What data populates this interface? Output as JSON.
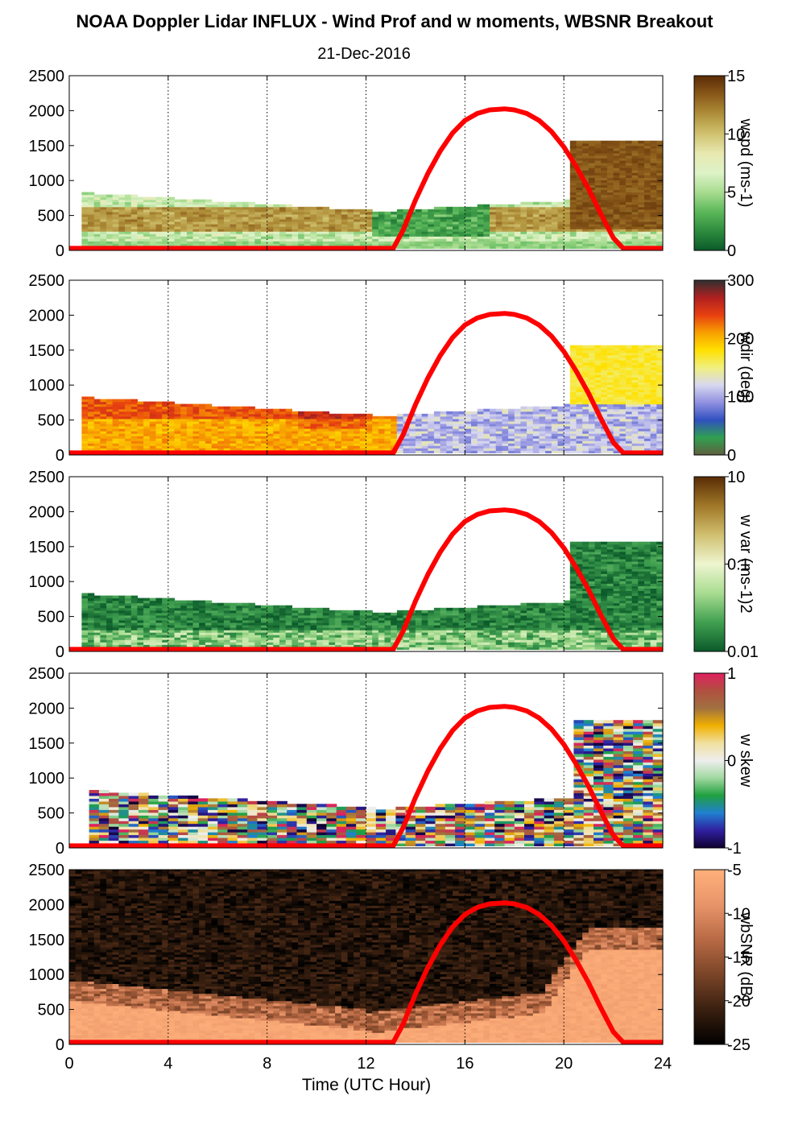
{
  "title": "NOAA Doppler Lidar INFLUX - Wind Prof and w moments, WBSNR Breakout",
  "subtitle": "21-Dec-2016",
  "chart_data": {
    "type": "heatmap",
    "xlabel": "Time (UTC Hour)",
    "xlim": [
      0,
      24
    ],
    "x_ticks": [
      "0",
      "4",
      "8",
      "12",
      "16",
      "20",
      "24"
    ],
    "x_gridlines": [
      4,
      8,
      12,
      16,
      20,
      24
    ],
    "ylim": [
      0,
      2500
    ],
    "y_ticks": [
      "0",
      "500",
      "1000",
      "1500",
      "2000",
      "2500"
    ],
    "overlay_curve": {
      "color": "#ff0000",
      "x": [
        0,
        13.1,
        13.5,
        14,
        14.5,
        15,
        15.5,
        16,
        16.5,
        17,
        17.6,
        18,
        18.5,
        19,
        19.5,
        20,
        20.5,
        21,
        21.5,
        22,
        22.4,
        24
      ],
      "y": [
        30,
        30,
        290,
        720,
        1100,
        1420,
        1680,
        1860,
        1960,
        2010,
        2025,
        2010,
        1960,
        1860,
        1700,
        1480,
        1200,
        880,
        520,
        180,
        30,
        30
      ]
    },
    "panels": [
      {
        "id": "wspd",
        "colorbar_label": "wspd (ms-1)",
        "colorbar_ticks": [
          "15",
          "10",
          "5",
          "0"
        ],
        "colorbar_colors": [
          "#5a2c05",
          "#8a5a1a",
          "#b0903a",
          "#d0c270",
          "#e8e8b0",
          "#ddf3c8",
          "#a8dc90",
          "#5cb85a",
          "#2e8b3e",
          "#0b5a2a"
        ]
      },
      {
        "id": "wdir",
        "colorbar_label": "wdir (deg)",
        "colorbar_ticks": [
          "300",
          "200",
          "100",
          "0"
        ],
        "colorbar_colors": [
          "#303030",
          "#b02020",
          "#e84010",
          "#f8a000",
          "#ffe000",
          "#f0f080",
          "#d8d8f0",
          "#9090e0",
          "#3050c0",
          "#30a050",
          "#606040"
        ]
      },
      {
        "id": "wvar",
        "colorbar_label": "w var (ms-1)2",
        "colorbar_ticks": [
          "10",
          "0.1",
          "0.01"
        ],
        "colorbar_colors": [
          "#5a2c05",
          "#a07828",
          "#d0c070",
          "#eef5d0",
          "#a8dc90",
          "#40a050",
          "#0b5a2a"
        ]
      },
      {
        "id": "wskew",
        "colorbar_label": "w skew",
        "colorbar_ticks": [
          "1",
          "0",
          "-1"
        ],
        "colorbar_colors": [
          "#e02060",
          "#b05040",
          "#a07040",
          "#f0b000",
          "#f0e0a0",
          "#eeeeee",
          "#a0d8a0",
          "#20a040",
          "#2080d0",
          "#3020a0",
          "#100030"
        ]
      },
      {
        "id": "wbsnr",
        "colorbar_label": "wbSNR (dB)",
        "colorbar_ticks": [
          "-5",
          "-10",
          "-15",
          "-20",
          "-25"
        ],
        "colorbar_colors": [
          "#ffb07a",
          "#e8946a",
          "#b86a44",
          "#7a4428",
          "#3a2010",
          "#000000"
        ]
      }
    ]
  }
}
